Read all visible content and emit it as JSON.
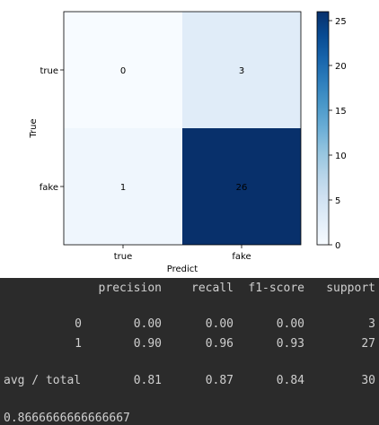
{
  "chart_data": {
    "type": "heatmap",
    "xlabel": "Predict",
    "ylabel": "True",
    "x_categories": [
      "true",
      "fake"
    ],
    "y_categories": [
      "true",
      "fake"
    ],
    "values": [
      [
        0,
        3
      ],
      [
        1,
        26
      ]
    ],
    "colormap": "Blues",
    "colorbar": {
      "min": 0,
      "max": 26,
      "ticks": [
        0,
        5,
        10,
        15,
        20,
        25
      ]
    }
  },
  "report": {
    "headers": [
      "precision",
      "recall",
      "f1-score",
      "support"
    ],
    "rows": [
      {
        "label": "0",
        "precision": "0.00",
        "recall": "0.00",
        "f1": "0.00",
        "support": "3"
      },
      {
        "label": "1",
        "precision": "0.90",
        "recall": "0.96",
        "f1": "0.93",
        "support": "27"
      }
    ],
    "total": {
      "label": "avg / total",
      "precision": "0.81",
      "recall": "0.87",
      "f1": "0.84",
      "support": "30"
    },
    "accuracy": "0.8666666666666667"
  }
}
